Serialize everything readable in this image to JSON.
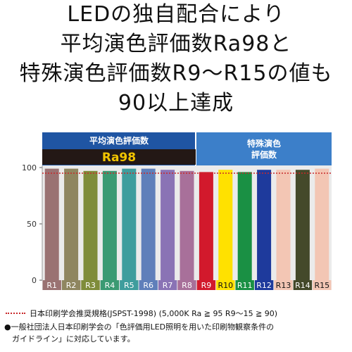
{
  "headline": [
    "LEDの独自配合により",
    "平均演色評価数Ra98と",
    "特殊演色評価数R9～R15の値も",
    "90以上達成"
  ],
  "section_labels": {
    "average": "平均演色評価数",
    "ra_badge": "Ra98",
    "special_line1": "特殊演色",
    "special_line2": "評価数"
  },
  "legend": {
    "reference_label": "日本印刷学会推奨規格(JSPST-1998) (5,000K Ra ≧ 95 R9～15 ≧ 90)"
  },
  "note": {
    "line1": "●一般社団法人日本印刷学会の「色評価用LED照明を用いた印刷物観察条件の",
    "line2": "ガイドライン」に対応しています。"
  },
  "colors": {
    "header_dark_blue": "#1f55a3",
    "header_light_blue": "#3c7fc9",
    "badge_bg": "#231815",
    "badge_text": "#f2c400",
    "reference_line": "#c8282a",
    "chart_bg": "#ebebeb"
  },
  "chart_data": {
    "type": "bar",
    "title": "",
    "xlabel": "",
    "ylabel": "",
    "ylim": [
      0,
      100
    ],
    "yticks": [
      0,
      50,
      100
    ],
    "grid": false,
    "reference_line": {
      "Ra": 95,
      "R9_R15": 90
    },
    "categories": [
      "R1",
      "R2",
      "R3",
      "R4",
      "R5",
      "R6",
      "R7",
      "R8",
      "R9",
      "R10",
      "R11",
      "R12",
      "R13",
      "R14",
      "R15"
    ],
    "values": [
      99,
      99,
      97,
      97,
      99,
      99,
      98,
      97,
      96,
      98,
      96,
      98,
      98,
      98,
      99
    ],
    "bar_colors": [
      "#9a7272",
      "#8f8660",
      "#7f8c3a",
      "#3a9a73",
      "#3e9d9d",
      "#5f7fba",
      "#8a73b5",
      "#a8709a",
      "#d2192c",
      "#ffe100",
      "#1a9044",
      "#1e3a9c",
      "#f3c6b4",
      "#44492a",
      "#f3c6b4"
    ],
    "label_text_colors": [
      "#ffffff",
      "#ffffff",
      "#ffffff",
      "#ffffff",
      "#ffffff",
      "#ffffff",
      "#ffffff",
      "#ffffff",
      "#ffffff",
      "#111111",
      "#ffffff",
      "#ffffff",
      "#111111",
      "#ffffff",
      "#111111"
    ]
  }
}
